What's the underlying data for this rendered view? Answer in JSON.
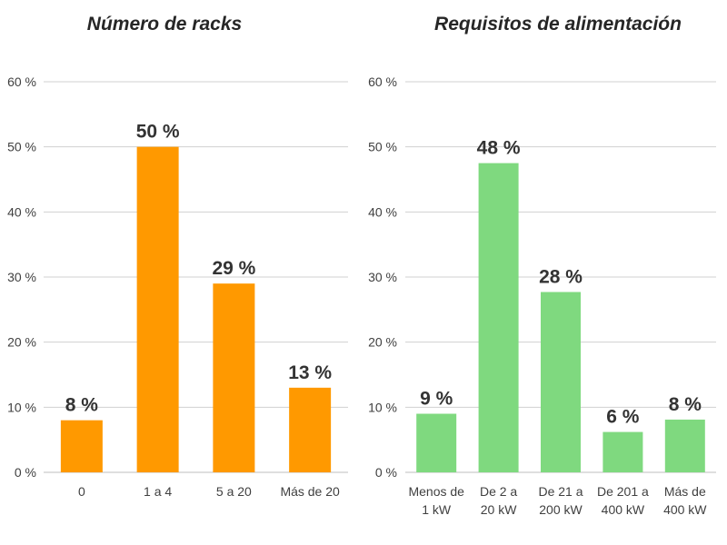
{
  "chart_data": [
    {
      "type": "bar",
      "title": "Número de racks",
      "categories": [
        [
          "0"
        ],
        [
          "1 a 4"
        ],
        [
          "5 a 20"
        ],
        [
          "Más de 20"
        ]
      ],
      "values": [
        8,
        50,
        29,
        13
      ],
      "value_labels": [
        "8 %",
        "50 %",
        "29 %",
        "13 %"
      ],
      "ylim": [
        0,
        60
      ],
      "yticks": [
        0,
        10,
        20,
        30,
        40,
        50,
        60
      ],
      "ytick_labels": [
        "0 %",
        "10 %",
        "20 %",
        "30 %",
        "40 %",
        "50 %",
        "60 %"
      ],
      "grid": true,
      "legend": "none",
      "color": "#FF9900"
    },
    {
      "type": "bar",
      "title": "Requisitos de alimentación",
      "categories": [
        [
          "Menos de",
          "1 kW"
        ],
        [
          "De 2 a",
          "20 kW"
        ],
        [
          "De 21 a",
          "200 kW"
        ],
        [
          "De 201 a",
          "400 kW"
        ],
        [
          "Más de",
          "400 kW"
        ]
      ],
      "values": [
        9,
        47.5,
        27.7,
        6.2,
        8.1
      ],
      "value_labels": [
        "9 %",
        "48 %",
        "28 %",
        "6 %",
        "8 %"
      ],
      "ylim": [
        0,
        60
      ],
      "yticks": [
        0,
        10,
        20,
        30,
        40,
        50,
        60
      ],
      "ytick_labels": [
        "0 %",
        "10 %",
        "20 %",
        "30 %",
        "40 %",
        "50 %",
        "60 %"
      ],
      "grid": true,
      "legend": "none",
      "color": "#7FD97F"
    }
  ]
}
